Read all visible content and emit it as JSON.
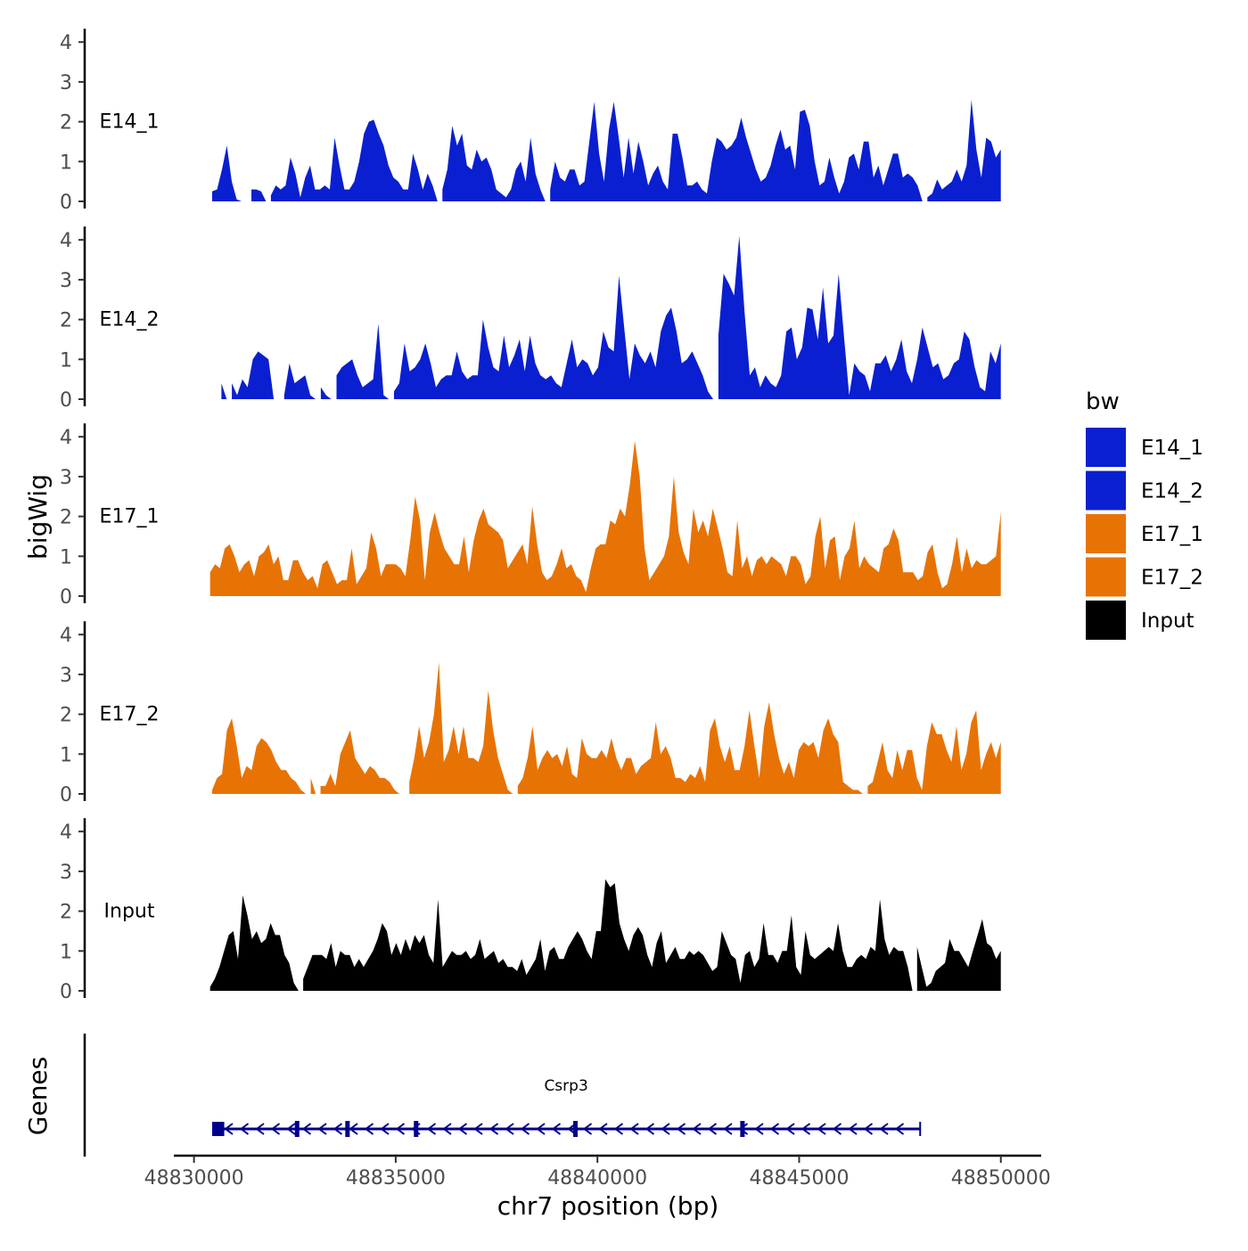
{
  "chart_data": {
    "type": "area",
    "ylabel": "bigWig",
    "genes_label": "Genes",
    "xlabel": "chr7 position (bp)",
    "x_range": [
      48829500,
      48851000
    ],
    "x_ticks": [
      "48830000",
      "48835000",
      "48840000",
      "48845000",
      "48850000"
    ],
    "x_tick_values": [
      48830000,
      48835000,
      48840000,
      48845000,
      48850000
    ],
    "y_range": [
      0,
      4.2
    ],
    "y_ticks": [
      "0",
      "1",
      "2",
      "3",
      "4"
    ],
    "y_tick_values": [
      0,
      1,
      2,
      3,
      4
    ],
    "legend": {
      "title": "bw",
      "position": "right",
      "entries": [
        {
          "label": "E14_1",
          "color": "#0a1fd0"
        },
        {
          "label": "E14_2",
          "color": "#0a1fd0"
        },
        {
          "label": "E17_1",
          "color": "#e87305"
        },
        {
          "label": "E17_2",
          "color": "#e87305"
        },
        {
          "label": "Input",
          "color": "#000000"
        }
      ]
    },
    "series": [
      {
        "name": "E14_1",
        "color": "#0a1fd0",
        "x_start": 48830450,
        "x_end": 48850000,
        "values": [
          0.25,
          0.3,
          0.8,
          1.4,
          0.5,
          0.05,
          0,
          0,
          0.3,
          0.3,
          0.25,
          0,
          0.15,
          0.4,
          0.3,
          0.4,
          1.1,
          0.7,
          0.1,
          0.6,
          0.9,
          0.3,
          0.3,
          0.4,
          0.3,
          1.6,
          0.9,
          0.3,
          0.3,
          0.5,
          1.0,
          1.7,
          2.0,
          2.05,
          1.7,
          1.4,
          0.9,
          0.6,
          0.5,
          0.3,
          0.3,
          1.2,
          0.8,
          0.3,
          0.7,
          0.4,
          0,
          0.3,
          0.8,
          1.9,
          1.4,
          1.7,
          0.9,
          0.8,
          1.3,
          1.0,
          1.1,
          0.8,
          0.3,
          0.2,
          0.1,
          0.3,
          0.8,
          1.0,
          0.5,
          1.6,
          0.7,
          0.3,
          0,
          0.3,
          1.0,
          0.6,
          0.5,
          0.8,
          0.8,
          0.4,
          0.5,
          1.5,
          2.5,
          1.2,
          0.5,
          1.8,
          2.5,
          1.6,
          0.6,
          1.6,
          0.7,
          1.5,
          1.0,
          0.4,
          0.7,
          0.9,
          0.5,
          0.3,
          1.7,
          1.7,
          1.1,
          0.4,
          0.4,
          0.5,
          0.3,
          0.2,
          1.0,
          1.6,
          1.5,
          1.3,
          1.4,
          1.6,
          2.1,
          1.6,
          1.2,
          0.8,
          0.5,
          0.6,
          0.9,
          1.4,
          1.8,
          1.3,
          1.4,
          0.8,
          2.25,
          2.3,
          1.9,
          1.0,
          0.4,
          0.5,
          1.1,
          0.6,
          0.2,
          0.5,
          1.1,
          1.2,
          0.8,
          1.5,
          1.5,
          0.6,
          0.9,
          0.4,
          0.8,
          1.2,
          1.2,
          0.6,
          0.7,
          0.6,
          0.4,
          0,
          0.1,
          0.2,
          0.55,
          0.3,
          0.4,
          0.5,
          0.8,
          0.5,
          0.9,
          2.55,
          1.3,
          0.6,
          1.6,
          1.5,
          1.1,
          1.3
        ]
      },
      {
        "name": "E14_2",
        "color": "#0a1fd0",
        "x_start": 48830550,
        "x_end": 48850000,
        "values": [
          0,
          0.4,
          0,
          0.4,
          0.1,
          0.5,
          0.3,
          1.0,
          1.2,
          1.1,
          1.0,
          0,
          0,
          0.1,
          0.9,
          0.4,
          0.5,
          0.6,
          0.1,
          0,
          0.3,
          0.1,
          0,
          0.6,
          0.8,
          0.9,
          1.0,
          0.6,
          0.3,
          0.4,
          0.5,
          1.9,
          0.1,
          0,
          0.2,
          0.4,
          1.4,
          0.7,
          0.8,
          1.0,
          1.4,
          0.9,
          0.3,
          0.5,
          0.6,
          0.6,
          1.2,
          0.7,
          0.5,
          0.6,
          0.6,
          2.0,
          1.3,
          0.8,
          0.7,
          1.6,
          0.8,
          1.1,
          1.5,
          0.7,
          1.6,
          0.9,
          0.6,
          0.5,
          0.6,
          0.4,
          0.3,
          0.9,
          1.5,
          0.8,
          1.0,
          0.9,
          0.6,
          0.8,
          1.7,
          1.3,
          1.2,
          3.1,
          1.8,
          0.5,
          1.4,
          1.1,
          0.9,
          1.2,
          0.8,
          1.7,
          2.1,
          2.3,
          1.7,
          0.9,
          1.0,
          1.2,
          0.9,
          0.6,
          0.2,
          0,
          1.6,
          3.15,
          2.9,
          2.6,
          4.1,
          2.2,
          0.6,
          0.8,
          0.3,
          0.6,
          0.4,
          0.3,
          0.6,
          1.7,
          1.8,
          1.0,
          1.3,
          2.3,
          2.25,
          1.5,
          2.8,
          1.4,
          1.6,
          3.15,
          1.6,
          0.1,
          0.9,
          0.7,
          0.6,
          0.2,
          0.9,
          0.9,
          1.1,
          0.7,
          1.0,
          1.5,
          0.7,
          0.4,
          1.0,
          1.8,
          1.3,
          0.8,
          0.9,
          0.5,
          0.6,
          0.9,
          1.0,
          1.7,
          1.5,
          0.8,
          0.3,
          0.2,
          1.2,
          0.9,
          1.4
        ]
      },
      {
        "name": "E17_1",
        "color": "#e87305",
        "x_start": 48830400,
        "x_end": 48850000,
        "values": [
          0.6,
          0.8,
          0.7,
          1.2,
          1.3,
          1.0,
          0.6,
          0.8,
          0.9,
          0.5,
          1.0,
          1.1,
          1.3,
          0.8,
          1.0,
          0.4,
          0.4,
          0.9,
          0.9,
          0.6,
          0.4,
          0.5,
          0.2,
          0.8,
          0.9,
          0.6,
          0.3,
          0.4,
          0.4,
          1.2,
          0.3,
          0.5,
          0.7,
          1.6,
          1.2,
          0.5,
          0.8,
          0.8,
          0.8,
          0.7,
          0.5,
          1.4,
          2.5,
          1.9,
          0.4,
          1.6,
          2.1,
          1.6,
          1.2,
          1.0,
          0.8,
          0.8,
          1.5,
          0.6,
          1.4,
          1.9,
          2.2,
          1.8,
          1.7,
          1.6,
          1.4,
          0.7,
          0.9,
          1.1,
          1.3,
          0.8,
          2.25,
          1.3,
          0.6,
          0.4,
          0.5,
          0.8,
          1.2,
          0.7,
          0.8,
          0.5,
          0.4,
          0.1,
          0.7,
          1.2,
          1.3,
          1.3,
          1.9,
          1.8,
          2.2,
          2.0,
          2.8,
          3.9,
          3.0,
          1.2,
          0.4,
          0.6,
          0.8,
          1.0,
          1.5,
          3.0,
          1.6,
          1.1,
          0.8,
          2.2,
          1.6,
          1.9,
          1.5,
          2.2,
          1.7,
          1.2,
          0.6,
          0.5,
          1.9,
          0.7,
          1.0,
          0.5,
          0.9,
          1.0,
          0.8,
          1.0,
          0.9,
          0.8,
          0.5,
          1.0,
          1.0,
          0.8,
          0.3,
          0.5,
          1.5,
          2.0,
          0.7,
          1.4,
          1.5,
          0.4,
          1.0,
          1.2,
          1.9,
          0.7,
          1.0,
          0.8,
          0.7,
          0.6,
          1.2,
          1.3,
          1.7,
          1.4,
          0.6,
          0.6,
          0.6,
          0.4,
          0.5,
          1.1,
          1.3,
          0.6,
          0.2,
          0.3,
          0.8,
          1.5,
          0.6,
          1.2,
          0.7,
          0.9,
          0.8,
          0.8,
          0.9,
          1.0,
          2.1
        ]
      },
      {
        "name": "E17_2",
        "color": "#e87305",
        "x_start": 48830450,
        "x_end": 48850000,
        "values": [
          0.1,
          0.4,
          0.5,
          1.6,
          1.9,
          1.2,
          0.4,
          0.7,
          0.6,
          1.2,
          1.4,
          1.3,
          1.1,
          0.8,
          0.6,
          0.6,
          0.4,
          0.3,
          0.1,
          0,
          0.4,
          0,
          0.2,
          0.2,
          0.5,
          0.2,
          1.0,
          1.3,
          1.6,
          0.9,
          0.7,
          0.5,
          0.7,
          0.6,
          0.4,
          0.4,
          0.3,
          0.1,
          0,
          0,
          0.3,
          0.9,
          1.7,
          0.9,
          1.3,
          2.0,
          3.3,
          0.8,
          1.1,
          1.7,
          1.0,
          1.7,
          0.9,
          0.9,
          0.8,
          1.2,
          2.6,
          1.6,
          0.9,
          0.5,
          0.1,
          0,
          0.2,
          0.4,
          0.9,
          1.7,
          0.6,
          0.9,
          1.1,
          0.9,
          1.0,
          0.7,
          1.2,
          0.5,
          0.4,
          1.4,
          1.0,
          0.9,
          0.9,
          1.1,
          0.9,
          1.4,
          0.9,
          0.6,
          0.9,
          0.9,
          0.5,
          0.7,
          0.8,
          0.9,
          1.8,
          1.0,
          1.2,
          0.9,
          0.4,
          0.4,
          0.3,
          0.5,
          0.4,
          0.7,
          0.3,
          1.6,
          1.9,
          1.2,
          0.8,
          1.2,
          0.6,
          0.6,
          1.2,
          2.1,
          1.2,
          0.4,
          1.7,
          2.3,
          1.5,
          0.9,
          0.5,
          0.8,
          0.4,
          1.1,
          1.3,
          1.2,
          1.3,
          0.9,
          1.6,
          1.9,
          1.5,
          1.3,
          0.3,
          0.2,
          0.1,
          0.1,
          0,
          0.2,
          0.3,
          0.8,
          1.3,
          0.6,
          0.4,
          1.1,
          0.6,
          1.1,
          1.1,
          0.4,
          0.1,
          1.2,
          1.8,
          1.5,
          1.5,
          1.1,
          0.8,
          1.7,
          0.6,
          1.0,
          1.8,
          2.1,
          0.6,
          1.0,
          1.3,
          0.9,
          1.3
        ]
      },
      {
        "name": "Input",
        "color": "#000000",
        "x_start": 48830400,
        "x_end": 48850000,
        "values": [
          0.1,
          0.3,
          0.6,
          1.0,
          1.4,
          1.5,
          0.8,
          2.4,
          1.9,
          1.3,
          1.5,
          1.2,
          1.3,
          1.7,
          1.4,
          1.4,
          0.9,
          0.7,
          0.2,
          0,
          0.3,
          0.6,
          0.9,
          0.9,
          0.9,
          0.8,
          1.2,
          0.6,
          1.0,
          0.9,
          0.9,
          0.6,
          0.8,
          0.6,
          0.8,
          1.0,
          1.3,
          1.7,
          1.5,
          0.9,
          1.2,
          0.9,
          1.3,
          1.0,
          1.4,
          1.2,
          1.4,
          0.9,
          0.7,
          2.3,
          0.6,
          0.8,
          1.0,
          0.9,
          0.9,
          1.0,
          0.8,
          0.9,
          1.3,
          0.8,
          0.9,
          1.0,
          0.7,
          0.8,
          0.6,
          0.6,
          0.5,
          0.8,
          0.4,
          0.6,
          0.8,
          1.3,
          0.5,
          1.0,
          1.1,
          0.8,
          0.8,
          1.1,
          1.3,
          1.5,
          1.3,
          1.0,
          0.8,
          1.5,
          1.5,
          2.8,
          2.6,
          2.7,
          1.7,
          1.3,
          1.0,
          1.4,
          1.6,
          1.4,
          0.9,
          0.6,
          1.2,
          1.5,
          0.7,
          0.9,
          1.1,
          0.8,
          0.8,
          1.0,
          0.9,
          1.0,
          0.9,
          0.7,
          0.5,
          0.6,
          1.5,
          1.2,
          0.9,
          0.8,
          0.2,
          0.9,
          1.0,
          0.6,
          0.8,
          1.7,
          0.9,
          0.9,
          0.7,
          1.0,
          1.0,
          1.9,
          0.6,
          0.4,
          1.5,
          0.9,
          0.8,
          0.9,
          1.0,
          1.1,
          1.0,
          1.7,
          1.0,
          0.6,
          0.6,
          0.8,
          0.9,
          0.8,
          1.1,
          1.0,
          2.3,
          1.3,
          0.9,
          1.1,
          1.0,
          1.0,
          0.6,
          0.0,
          1.1,
          0.6,
          0.1,
          0.2,
          0.5,
          0.6,
          0.7,
          1.3,
          1.0,
          1.0,
          0.8,
          0.6,
          1.0,
          1.4,
          1.8,
          1.2,
          1.1,
          0.8,
          1.0
        ]
      }
    ],
    "gene": {
      "name": "Csrp3",
      "strand": "-",
      "color": "#00008b",
      "start": 48830450,
      "end": 48848000,
      "exons": [
        {
          "start": 48830450,
          "end": 48830750,
          "thick": true
        },
        {
          "start": 48832500,
          "end": 48832560,
          "thick": false
        },
        {
          "start": 48833750,
          "end": 48833820,
          "thick": false
        },
        {
          "start": 48835450,
          "end": 48835530,
          "thick": false
        },
        {
          "start": 48839400,
          "end": 48839470,
          "thick": false
        },
        {
          "start": 48843540,
          "end": 48843580,
          "thick": false
        }
      ]
    }
  }
}
